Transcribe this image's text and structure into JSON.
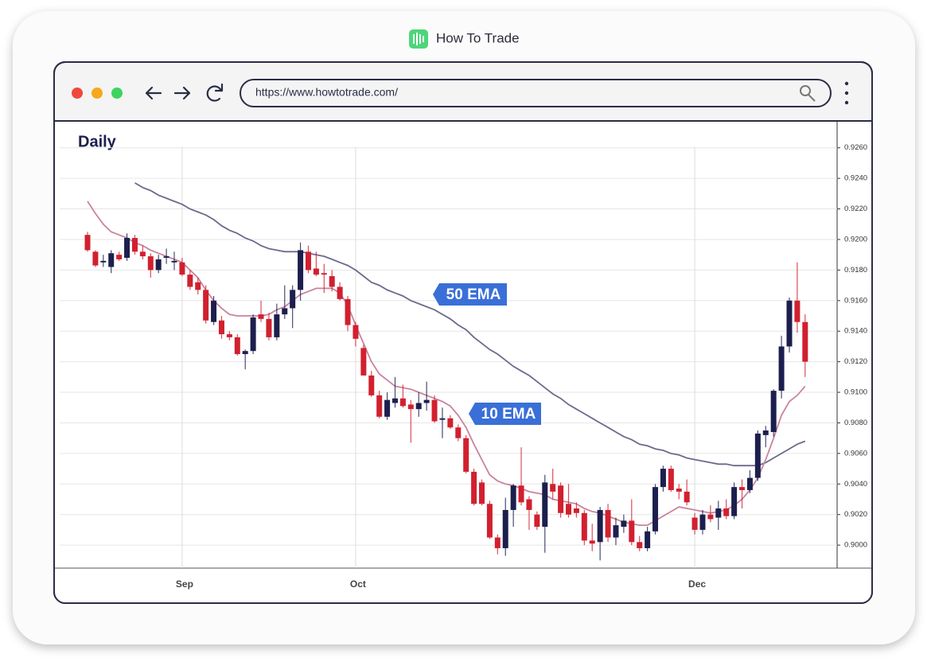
{
  "app": {
    "name": "How To Trade",
    "url": "https://www.howtotrade.com/"
  },
  "chart_data": {
    "type": "candlestick",
    "title": "Daily",
    "categories": [
      null,
      null,
      null,
      null,
      null,
      null,
      null,
      null,
      null,
      null,
      null,
      null,
      "Sep",
      null,
      null,
      null,
      null,
      null,
      null,
      null,
      null,
      null,
      null,
      null,
      null,
      null,
      null,
      null,
      null,
      null,
      null,
      null,
      null,
      null,
      "Oct",
      null,
      null,
      null,
      null,
      null,
      null,
      null,
      null,
      null,
      null,
      null,
      null,
      null,
      null,
      null,
      null,
      null,
      null,
      null,
      null,
      null,
      null,
      null,
      null,
      null,
      null,
      null,
      null,
      null,
      null,
      null,
      null,
      null,
      null,
      null,
      null,
      null,
      null,
      null,
      null,
      null,
      null,
      "Dec",
      null,
      null,
      null,
      null,
      null,
      null,
      null,
      null,
      null,
      null,
      null,
      null,
      null,
      null
    ],
    "open": [
      0.9203,
      0.9192,
      0.9185,
      0.9182,
      0.919,
      0.9188,
      0.9201,
      0.9192,
      0.9189,
      0.918,
      0.9188,
      0.9185,
      0.9185,
      0.9177,
      0.9172,
      0.9167,
      0.9146,
      0.9147,
      0.9138,
      0.9136,
      0.9125,
      0.9127,
      0.9151,
      0.9148,
      0.9136,
      0.9151,
      0.9155,
      0.9167,
      0.9192,
      0.9181,
      0.9178,
      0.9176,
      0.9169,
      0.9161,
      0.9144,
      0.9129,
      0.9111,
      0.9098,
      0.9084,
      0.9093,
      0.9096,
      0.9092,
      0.9089,
      0.9093,
      0.9095,
      0.9082,
      0.9083,
      0.9077,
      0.907,
      0.9048,
      0.9041,
      0.9027,
      0.9005,
      0.8998,
      0.9023,
      0.9039,
      0.903,
      0.902,
      0.9012,
      0.904,
      0.9039,
      0.9027,
      0.9024,
      0.9021,
      0.9003,
      0.9002,
      0.9023,
      0.9005,
      0.9012,
      0.9016,
      0.9002,
      0.8998,
      0.9009,
      0.9038,
      0.905,
      0.9037,
      0.9035,
      0.9018,
      0.901,
      0.902,
      0.9018,
      0.9024,
      0.9019,
      0.9038,
      0.9036,
      0.9044,
      0.9072,
      0.9074,
      0.9101,
      0.913,
      0.916,
      0.9146
    ],
    "high": [
      0.9205,
      0.9193,
      0.919,
      0.9193,
      0.9192,
      0.9204,
      0.9203,
      0.9196,
      0.9191,
      0.919,
      0.9194,
      0.9192,
      0.9188,
      0.918,
      0.9175,
      0.917,
      0.9163,
      0.915,
      0.914,
      0.9138,
      0.9128,
      0.9151,
      0.916,
      0.9152,
      0.9158,
      0.917,
      0.917,
      0.9198,
      0.9196,
      0.9192,
      0.9184,
      0.918,
      0.9172,
      0.9163,
      0.9146,
      0.9131,
      0.9114,
      0.9101,
      0.91,
      0.911,
      0.9105,
      0.9095,
      0.91,
      0.9107,
      0.9098,
      0.909,
      0.9085,
      0.9079,
      0.9072,
      0.905,
      0.9043,
      0.9029,
      0.9007,
      0.9031,
      0.904,
      0.9064,
      0.9032,
      0.9022,
      0.9046,
      0.905,
      0.9041,
      0.904,
      0.9028,
      0.9023,
      0.9014,
      0.9025,
      0.9027,
      0.9018,
      0.902,
      0.903,
      0.9006,
      0.9012,
      0.904,
      0.9052,
      0.9052,
      0.904,
      0.9043,
      0.9021,
      0.9023,
      0.9026,
      0.9029,
      0.903,
      0.9041,
      0.9043,
      0.9049,
      0.9075,
      0.9078,
      0.9102,
      0.9137,
      0.9162,
      0.9185,
      0.9151
    ],
    "low": [
      0.9192,
      0.9182,
      0.9182,
      0.9178,
      0.9186,
      0.9186,
      0.919,
      0.9187,
      0.9175,
      0.9178,
      0.9184,
      0.918,
      0.9176,
      0.9167,
      0.9164,
      0.9145,
      0.9144,
      0.9135,
      0.9134,
      0.9124,
      0.9115,
      0.9125,
      0.9146,
      0.9134,
      0.9134,
      0.9148,
      0.9142,
      0.916,
      0.9178,
      0.9176,
      0.9165,
      0.9166,
      0.916,
      0.914,
      0.913,
      0.9111,
      0.9097,
      0.9083,
      0.9082,
      0.909,
      0.909,
      0.9067,
      0.9084,
      0.9088,
      0.908,
      0.907,
      0.9076,
      0.9068,
      0.9047,
      0.9026,
      0.9026,
      0.9004,
      0.8994,
      0.8993,
      0.9012,
      0.9026,
      0.901,
      0.901,
      0.8995,
      0.903,
      0.9018,
      0.9018,
      0.9018,
      0.9,
      0.8996,
      0.899,
      0.9002,
      0.9,
      0.9008,
      0.9,
      0.8996,
      0.8996,
      0.9007,
      0.9035,
      0.9035,
      0.903,
      0.9026,
      0.9007,
      0.9007,
      0.9015,
      0.901,
      0.9017,
      0.9017,
      0.9024,
      0.9034,
      0.9042,
      0.9064,
      0.9071,
      0.9096,
      0.9126,
      0.9139,
      0.911
    ],
    "close": [
      0.9193,
      0.9183,
      0.9186,
      0.9191,
      0.9187,
      0.9201,
      0.9192,
      0.9189,
      0.918,
      0.9187,
      0.9189,
      0.9186,
      0.9177,
      0.9169,
      0.9167,
      0.9147,
      0.916,
      0.9138,
      0.9136,
      0.9125,
      0.9127,
      0.9149,
      0.9148,
      0.9136,
      0.9151,
      0.9155,
      0.9167,
      0.9193,
      0.918,
      0.9177,
      0.9177,
      0.9169,
      0.9161,
      0.9144,
      0.9135,
      0.9111,
      0.9098,
      0.9084,
      0.9095,
      0.9096,
      0.9091,
      0.9089,
      0.9093,
      0.9095,
      0.9081,
      0.9083,
      0.9077,
      0.907,
      0.9048,
      0.9027,
      0.9027,
      0.9005,
      0.8998,
      0.9023,
      0.9039,
      0.9028,
      0.9023,
      0.9012,
      0.9041,
      0.9035,
      0.9021,
      0.902,
      0.9021,
      0.9003,
      0.9001,
      0.9023,
      0.9005,
      0.9013,
      0.9016,
      0.9002,
      0.8998,
      0.9009,
      0.9038,
      0.905,
      0.9036,
      0.9035,
      0.9028,
      0.901,
      0.902,
      0.9017,
      0.9024,
      0.9019,
      0.9038,
      0.9036,
      0.9044,
      0.9073,
      0.9075,
      0.9101,
      0.913,
      0.916,
      0.9146,
      0.912
    ],
    "up_color": "#1c1f4d",
    "down_color": "#d1202f",
    "series": [
      {
        "name": "50 EMA",
        "color": "#6c6a8c",
        "values": [
          null,
          null,
          null,
          null,
          null,
          null,
          0.9237,
          0.9234,
          0.9232,
          0.9229,
          0.9227,
          0.9225,
          0.9223,
          0.922,
          0.9218,
          0.9216,
          0.9213,
          0.9209,
          0.9206,
          0.9204,
          0.9201,
          0.9199,
          0.9196,
          0.9194,
          0.9193,
          0.9192,
          0.9192,
          0.9192,
          0.9191,
          0.919,
          0.9189,
          0.9187,
          0.9185,
          0.9183,
          0.918,
          0.9176,
          0.9172,
          0.917,
          0.9167,
          0.9165,
          0.9163,
          0.916,
          0.9158,
          0.9156,
          0.9154,
          0.9151,
          0.9148,
          0.9144,
          0.9141,
          0.9136,
          0.9132,
          0.9128,
          0.9125,
          0.9121,
          0.9117,
          0.9114,
          0.9111,
          0.9107,
          0.9103,
          0.9099,
          0.9096,
          0.9092,
          0.9089,
          0.9086,
          0.9083,
          0.908,
          0.9077,
          0.9074,
          0.9071,
          0.9069,
          0.9066,
          0.9065,
          0.9063,
          0.9062,
          0.906,
          0.9059,
          0.9057,
          0.9056,
          0.9055,
          0.9054,
          0.9053,
          0.9053,
          0.9052,
          0.9052,
          0.9052,
          0.9052,
          0.9054,
          0.9057,
          0.906,
          0.9063,
          0.9066,
          0.9068
        ]
      },
      {
        "name": "10 EMA",
        "color": "#c9839e",
        "values": [
          0.9225,
          0.9217,
          0.921,
          0.9205,
          0.9203,
          0.9201,
          0.9198,
          0.9196,
          0.9193,
          0.9191,
          0.9189,
          0.9187,
          0.9185,
          0.918,
          0.9175,
          0.9167,
          0.916,
          0.9155,
          0.9151,
          0.915,
          0.915,
          0.915,
          0.915,
          0.9151,
          0.9154,
          0.9156,
          0.916,
          0.9164,
          0.9166,
          0.9168,
          0.9168,
          0.9168,
          0.9165,
          0.9157,
          0.9144,
          0.9132,
          0.912,
          0.9112,
          0.9108,
          0.9104,
          0.9103,
          0.9102,
          0.91,
          0.9098,
          0.9096,
          0.9094,
          0.9091,
          0.9085,
          0.9077,
          0.9066,
          0.9056,
          0.9046,
          0.9042,
          0.904,
          0.9039,
          0.9037,
          0.9035,
          0.9034,
          0.9033,
          0.903,
          0.9029,
          0.9028,
          0.9027,
          0.9024,
          0.9022,
          0.9021,
          0.9019,
          0.9017,
          0.9015,
          0.9014,
          0.9013,
          0.9013,
          0.9016,
          0.9019,
          0.9022,
          0.9025,
          0.9024,
          0.9023,
          0.9022,
          0.9021,
          0.9022,
          0.9023,
          0.9026,
          0.903,
          0.9036,
          0.9044,
          0.9056,
          0.907,
          0.9085,
          0.9094,
          0.9098,
          0.9104
        ]
      }
    ],
    "ylim": [
      0.8986,
      0.9276
    ],
    "yticks": [
      {
        "value": 0.926,
        "label": "0.9260"
      },
      {
        "value": 0.924,
        "label": "0.9240"
      },
      {
        "value": 0.922,
        "label": "0.9220"
      },
      {
        "value": 0.92,
        "label": "0.9200"
      },
      {
        "value": 0.918,
        "label": "0.9180"
      },
      {
        "value": 0.916,
        "label": "0.9160"
      },
      {
        "value": 0.914,
        "label": "0.9140"
      },
      {
        "value": 0.912,
        "label": "0.9120"
      },
      {
        "value": 0.91,
        "label": "0.9100"
      },
      {
        "value": 0.908,
        "label": "0.9080"
      },
      {
        "value": 0.906,
        "label": "0.9060"
      },
      {
        "value": 0.904,
        "label": "0.9040"
      },
      {
        "value": 0.902,
        "label": "0.9020"
      },
      {
        "value": 0.9,
        "label": "0.9000"
      }
    ],
    "grid": true
  }
}
